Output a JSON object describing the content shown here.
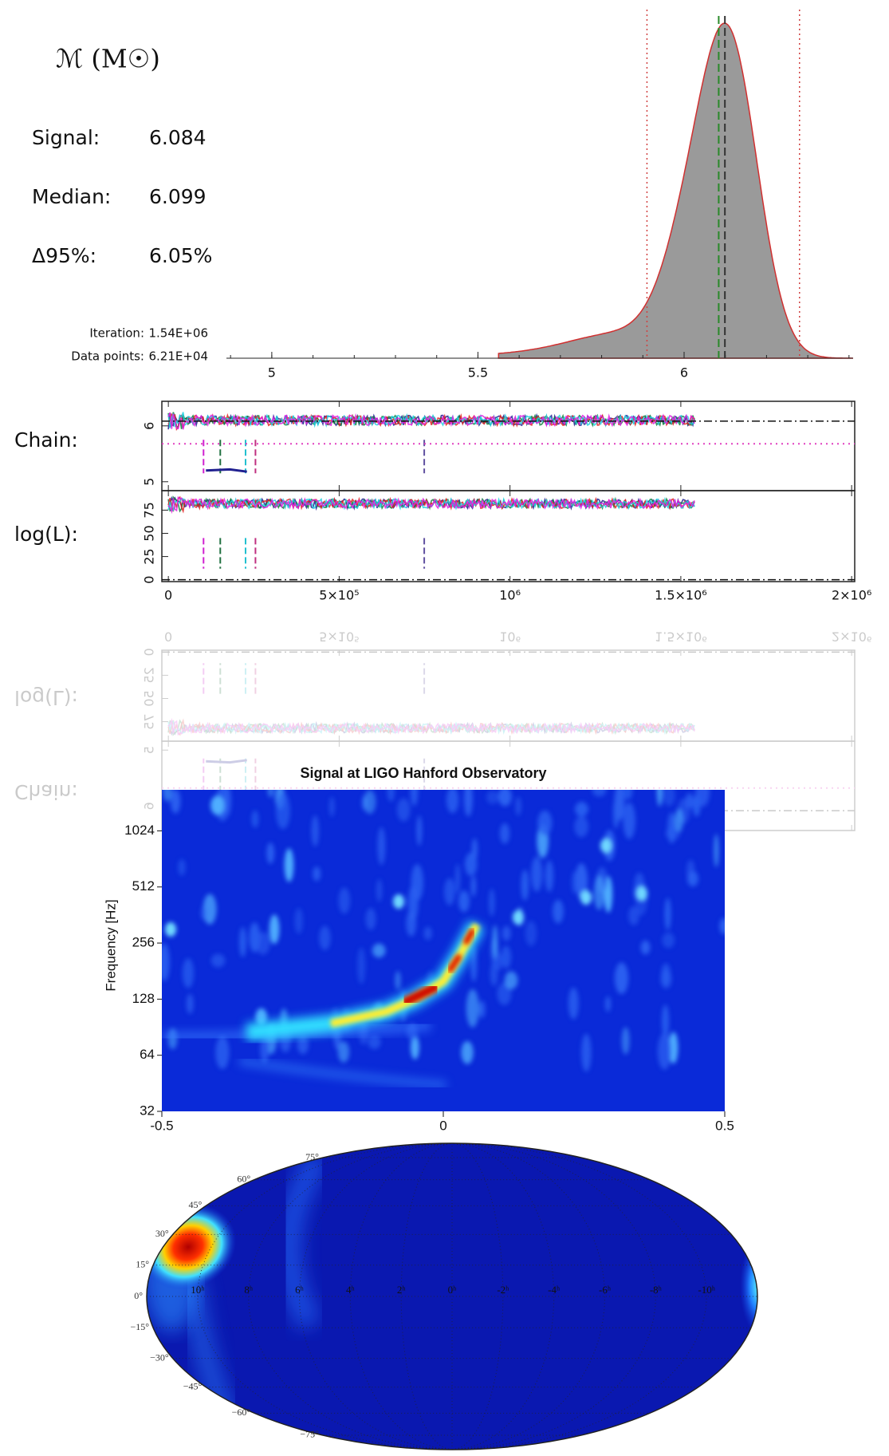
{
  "posterior": {
    "label": "ℳ (M☉)",
    "stats": [
      {
        "name": "Signal:",
        "value": 6.084
      },
      {
        "name": "Median:",
        "value": 6.099
      },
      {
        "name": "Δ95%:",
        "value": "6.05%"
      }
    ],
    "iteration_label": "Iteration:",
    "iteration": "1.54E+06",
    "points_label": "Data points:",
    "points": "6.21E+04",
    "xlim": [
      4.89,
      6.41
    ],
    "xticks": [
      5,
      5.5,
      6
    ],
    "interval": [
      5.91,
      6.28
    ]
  },
  "chain": {
    "label": "Chain:",
    "ylim": [
      4.84,
      6.44
    ],
    "yticks": [
      5,
      6
    ],
    "lower_line": 5.68
  },
  "loglik": {
    "label": "log(L):",
    "ylim": [
      -2,
      96
    ],
    "yticks": [
      0,
      25,
      50,
      75
    ]
  },
  "iterations_axis": {
    "xlim": [
      -19000,
      2009000
    ],
    "xticks": [
      0,
      {
        "value": 500000,
        "label": "5×10⁵"
      },
      {
        "value": 1000000,
        "label": "10⁶"
      },
      {
        "value": 1500000,
        "label": "1.5×10⁶"
      },
      {
        "value": 2000000,
        "label": "2×10⁶"
      }
    ],
    "markers": [
      {
        "value": 103000,
        "color": "#d020d0"
      },
      {
        "value": 152000,
        "color": "#207040"
      },
      {
        "value": 226000,
        "color": "#20c0d0"
      },
      {
        "value": 255000,
        "color": "#c03080"
      },
      {
        "value": 749000,
        "color": "#6050a0"
      }
    ]
  },
  "spectrogram": {
    "title": "Signal at LIGO Hanford Observatory",
    "ylabel": "Frequency [Hz]",
    "xlim": [
      -0.5,
      0.5
    ],
    "xticks": [
      -0.5,
      0,
      0.5
    ],
    "ylim": [
      32,
      1700
    ],
    "yticks": [
      32,
      64,
      128,
      256,
      512,
      1024
    ],
    "log_y": true
  },
  "skymap": {
    "lat_ticks": [
      {
        "value": 75,
        "label": "75°"
      },
      {
        "value": 60,
        "label": "60°"
      },
      {
        "value": 45,
        "label": "45°"
      },
      {
        "value": 30,
        "label": "30°"
      },
      {
        "value": 15,
        "label": "15°"
      },
      {
        "value": 0,
        "label": "0°"
      },
      {
        "value": -15,
        "label": "−15°"
      },
      {
        "value": -30,
        "label": "−30°"
      },
      {
        "value": -45,
        "label": "−45°"
      },
      {
        "value": -60,
        "label": "−60°"
      },
      {
        "value": -75,
        "label": "−75°"
      }
    ],
    "ra_ticks": [
      {
        "value": 10,
        "label": "10ʰ"
      },
      {
        "value": 8,
        "label": "8ʰ"
      },
      {
        "value": 6,
        "label": "6ʰ"
      },
      {
        "value": 4,
        "label": "4ʰ"
      },
      {
        "value": 2,
        "label": "2ʰ"
      },
      {
        "value": 0,
        "label": "0ʰ"
      },
      {
        "value": -2,
        "label": "-2ʰ"
      },
      {
        "value": -4,
        "label": "-4ʰ"
      },
      {
        "value": -6,
        "label": "-6ʰ"
      },
      {
        "value": -8,
        "label": "-8ʰ"
      },
      {
        "value": -10,
        "label": "-10ʰ"
      }
    ]
  }
}
